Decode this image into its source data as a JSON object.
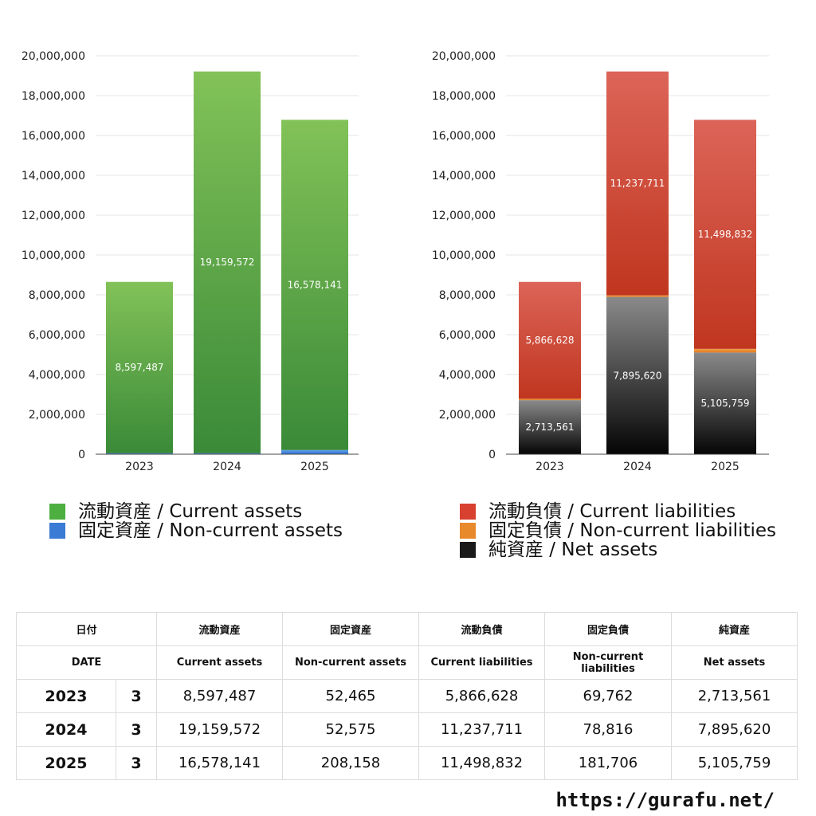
{
  "chart_data": [
    {
      "type": "bar",
      "stacked": true,
      "categories": [
        "2023",
        "2024",
        "2025"
      ],
      "ylim": [
        0,
        20000000
      ],
      "yticks": [
        "0",
        "2,000,000",
        "4,000,000",
        "6,000,000",
        "8,000,000",
        "10,000,000",
        "12,000,000",
        "14,000,000",
        "16,000,000",
        "18,000,000",
        "20,000,000"
      ],
      "series": [
        {
          "name": "固定資産 / Non-current assets",
          "values": [
            52465,
            52575,
            208158
          ],
          "labels": [
            "52,465",
            "52,575",
            "208,158"
          ],
          "color": "#3a7bd5"
        },
        {
          "name": "流動資産 / Current assets",
          "values": [
            8597487,
            19159572,
            16578141
          ],
          "labels": [
            "8,597,487",
            "19,159,572",
            "16,578,141"
          ],
          "color": "#5aa544"
        }
      ],
      "legend": [
        "流動資産 / Current assets",
        "固定資産 / Non-current assets"
      ],
      "legend_colors": [
        "#4caf3f",
        "#3a7bd5"
      ],
      "legend_position": "bottom",
      "grid": true
    },
    {
      "type": "bar",
      "stacked": true,
      "categories": [
        "2023",
        "2024",
        "2025"
      ],
      "ylim": [
        0,
        20000000
      ],
      "yticks": [
        "0",
        "2,000,000",
        "4,000,000",
        "6,000,000",
        "8,000,000",
        "10,000,000",
        "12,000,000",
        "14,000,000",
        "16,000,000",
        "18,000,000",
        "20,000,000"
      ],
      "series": [
        {
          "name": "純資産 / Net assets",
          "values": [
            2713561,
            7895620,
            5105759
          ],
          "labels": [
            "2,713,561",
            "7,895,620",
            "5,105,759"
          ],
          "color": "#333333"
        },
        {
          "name": "固定負債 / Non-current liabilities",
          "values": [
            69762,
            78816,
            181706
          ],
          "labels": [
            "69,762",
            "78,816",
            "181,706"
          ],
          "color": "#e8892b"
        },
        {
          "name": "流動負債 / Current liabilities",
          "values": [
            5866628,
            11237711,
            11498832
          ],
          "labels": [
            "5,866,628",
            "11,237,711",
            "11,498,832"
          ],
          "color": "#d04a3a"
        }
      ],
      "legend": [
        "流動負債 / Current liabilities",
        "固定負債 / Non-current liabilities",
        "純資産 / Net assets"
      ],
      "legend_colors": [
        "#d8402f",
        "#e8892b",
        "#1a1a1a"
      ],
      "legend_position": "bottom",
      "grid": true
    }
  ],
  "table": {
    "header_jp": [
      "日付",
      "流動資産",
      "固定資産",
      "流動負債",
      "固定負債",
      "純資産"
    ],
    "header_en": [
      "DATE",
      "Current assets",
      "Non-current assets",
      "Current liabilities",
      "Non-current liabilities",
      "Net assets"
    ],
    "rows": [
      {
        "year": "2023",
        "month": "3",
        "cells": [
          "8,597,487",
          "52,465",
          "5,866,628",
          "69,762",
          "2,713,561"
        ]
      },
      {
        "year": "2024",
        "month": "3",
        "cells": [
          "19,159,572",
          "52,575",
          "11,237,711",
          "78,816",
          "7,895,620"
        ]
      },
      {
        "year": "2025",
        "month": "3",
        "cells": [
          "16,578,141",
          "208,158",
          "11,498,832",
          "181,706",
          "5,105,759"
        ]
      }
    ]
  },
  "footer": {
    "url": "https://gurafu.net/"
  }
}
